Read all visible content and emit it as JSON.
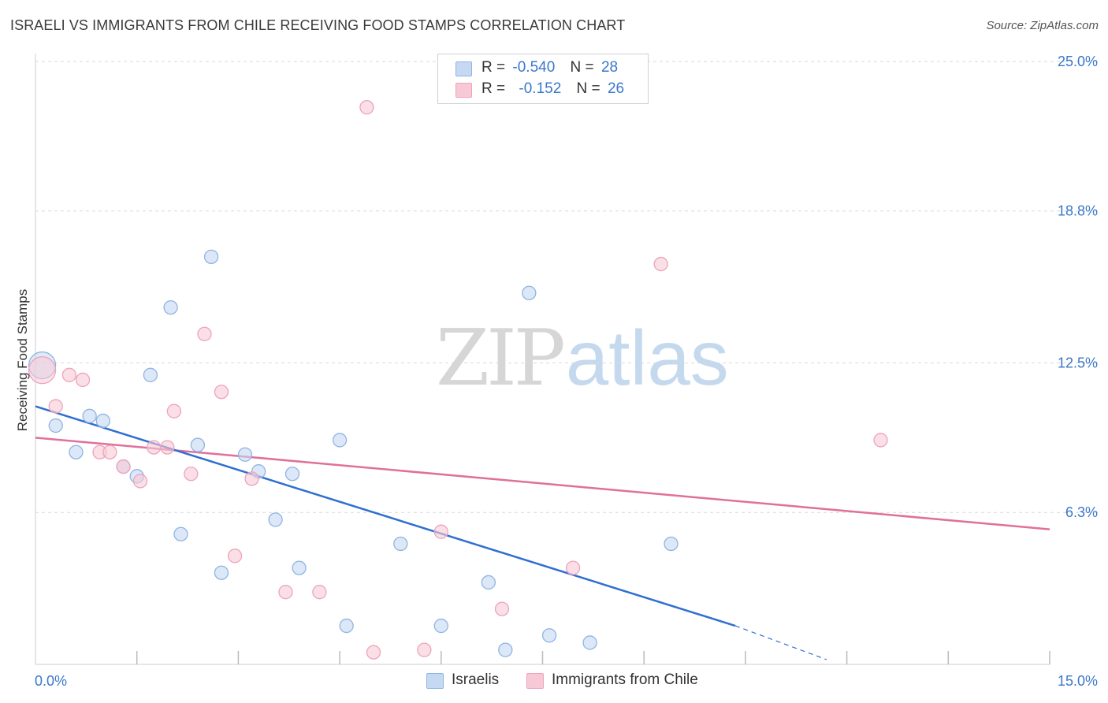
{
  "title": "ISRAELI VS IMMIGRANTS FROM CHILE RECEIVING FOOD STAMPS CORRELATION CHART",
  "source": "Source: ZipAtlas.com",
  "watermark": {
    "part1": "ZIP",
    "part2": "atlas"
  },
  "legend_top": {
    "rows": [
      {
        "r_label": "R =",
        "r_value": "-0.540",
        "n_label": "N =",
        "n_value": "28"
      },
      {
        "r_label": "R =",
        "r_value": "-0.152",
        "n_label": "N =",
        "n_value": "26"
      }
    ]
  },
  "colors": {
    "blue_fill": "#c5d9f2",
    "blue_stroke": "#8fb4e4",
    "blue_line": "#2f6fd0",
    "pink_fill": "#f7c9d7",
    "pink_stroke": "#eea3bb",
    "pink_line": "#e0709a",
    "tick_text": "#3b78c8",
    "grid": "#d9d9d9"
  },
  "chart_data": {
    "type": "scatter",
    "title": "ISRAELI VS IMMIGRANTS FROM CHILE RECEIVING FOOD STAMPS CORRELATION CHART",
    "xlabel": "",
    "ylabel": "Receiving Food Stamps",
    "xlim": [
      0,
      15
    ],
    "ylim": [
      0,
      25
    ],
    "x_tick_labels": [
      "0.0%",
      "15.0%"
    ],
    "y_ticks": [
      6.3,
      12.5,
      18.8,
      25.0
    ],
    "y_tick_labels": [
      "6.3%",
      "12.5%",
      "18.8%",
      "25.0%"
    ],
    "grid": true,
    "legend_position": "bottom",
    "series": [
      {
        "name": "Israelis",
        "color": "#8fb4e4",
        "points": [
          [
            0.1,
            12.4
          ],
          [
            0.3,
            9.9
          ],
          [
            0.6,
            8.8
          ],
          [
            0.8,
            10.3
          ],
          [
            1.0,
            10.1
          ],
          [
            1.3,
            8.2
          ],
          [
            1.5,
            7.8
          ],
          [
            1.7,
            12.0
          ],
          [
            2.0,
            14.8
          ],
          [
            2.15,
            5.4
          ],
          [
            2.4,
            9.1
          ],
          [
            2.6,
            16.9
          ],
          [
            2.75,
            3.8
          ],
          [
            3.1,
            8.7
          ],
          [
            3.3,
            8.0
          ],
          [
            3.55,
            6.0
          ],
          [
            3.8,
            7.9
          ],
          [
            3.9,
            4.0
          ],
          [
            4.5,
            9.3
          ],
          [
            4.6,
            1.6
          ],
          [
            5.4,
            5.0
          ],
          [
            6.0,
            1.6
          ],
          [
            6.7,
            3.4
          ],
          [
            6.95,
            0.6
          ],
          [
            7.3,
            15.4
          ],
          [
            7.6,
            1.2
          ],
          [
            8.2,
            0.9
          ],
          [
            9.4,
            5.0
          ]
        ],
        "trend": {
          "x": [
            0,
            10.35
          ],
          "y": [
            10.7,
            1.6
          ],
          "dashed_to": [
            11.7,
            0.2
          ]
        }
      },
      {
        "name": "Immigrants from Chile",
        "color": "#eea3bb",
        "points": [
          [
            0.1,
            12.2
          ],
          [
            0.3,
            10.7
          ],
          [
            0.5,
            12.0
          ],
          [
            0.7,
            11.8
          ],
          [
            0.95,
            8.8
          ],
          [
            1.1,
            8.8
          ],
          [
            1.3,
            8.2
          ],
          [
            1.55,
            7.6
          ],
          [
            1.75,
            9.0
          ],
          [
            1.95,
            9.0
          ],
          [
            2.05,
            10.5
          ],
          [
            2.3,
            7.9
          ],
          [
            2.5,
            13.7
          ],
          [
            2.75,
            11.3
          ],
          [
            2.95,
            4.5
          ],
          [
            3.2,
            7.7
          ],
          [
            3.7,
            3.0
          ],
          [
            4.2,
            3.0
          ],
          [
            4.9,
            23.1
          ],
          [
            5.0,
            0.5
          ],
          [
            5.75,
            0.6
          ],
          [
            6.0,
            5.5
          ],
          [
            6.9,
            2.3
          ],
          [
            7.95,
            4.0
          ],
          [
            9.25,
            16.6
          ],
          [
            12.5,
            9.3
          ]
        ],
        "trend": {
          "x": [
            0,
            15
          ],
          "y": [
            9.4,
            5.6
          ]
        }
      }
    ]
  }
}
